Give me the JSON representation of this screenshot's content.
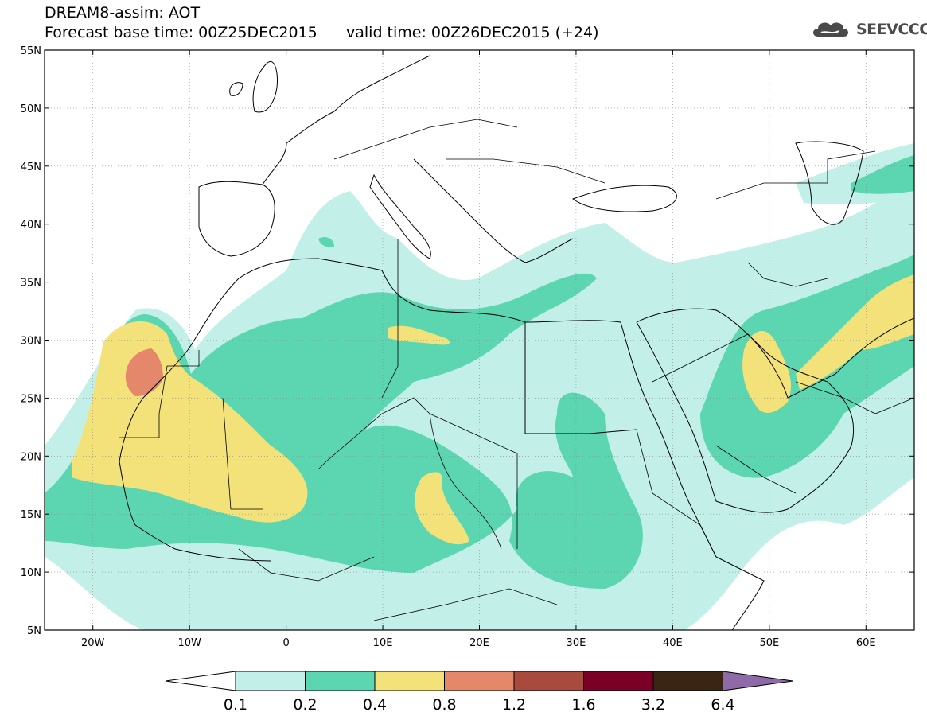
{
  "header": {
    "title_line1": "DREAM8-assim: AOT",
    "base_time_label": "Forecast base time: 00Z25DEC2015",
    "valid_time_label": "valid time: 00Z26DEC2015 (+24)"
  },
  "logo": {
    "icon": "cloud-logo-icon",
    "text": "SEEVCCC"
  },
  "map": {
    "lon_range": [
      -25,
      65
    ],
    "lat_range": [
      5,
      55
    ],
    "lon_ticks": [
      {
        "value": -20,
        "label": "20W"
      },
      {
        "value": -10,
        "label": "10W"
      },
      {
        "value": 0,
        "label": "0"
      },
      {
        "value": 10,
        "label": "10E"
      },
      {
        "value": 20,
        "label": "20E"
      },
      {
        "value": 30,
        "label": "30E"
      },
      {
        "value": 40,
        "label": "40E"
      },
      {
        "value": 50,
        "label": "50E"
      },
      {
        "value": 60,
        "label": "60E"
      }
    ],
    "lat_ticks": [
      {
        "value": 55,
        "label": "55N"
      },
      {
        "value": 50,
        "label": "50N"
      },
      {
        "value": 45,
        "label": "45N"
      },
      {
        "value": 40,
        "label": "40N"
      },
      {
        "value": 35,
        "label": "35N"
      },
      {
        "value": 30,
        "label": "30N"
      },
      {
        "value": 25,
        "label": "25N"
      },
      {
        "value": 20,
        "label": "20N"
      },
      {
        "value": 15,
        "label": "15N"
      },
      {
        "value": 10,
        "label": "10N"
      },
      {
        "value": 5,
        "label": "5N"
      }
    ],
    "grid": true,
    "colors": {
      "aot_0_1_0_2": "#c3efe9",
      "aot_0_2_0_4": "#5bd6b0",
      "aot_0_4_0_8": "#f3e27a",
      "aot_0_8_1_2": "#e5876a"
    }
  },
  "colorbar": {
    "labels": [
      "0.1",
      "0.2",
      "0.4",
      "0.8",
      "1.2",
      "1.6",
      "3.2",
      "6.4"
    ],
    "colors": [
      "#c3efe9",
      "#5bd6b0",
      "#f3e27a",
      "#e5876a",
      "#a94a3e",
      "#7a0026",
      "#3a2414",
      "#8f6aa8"
    ],
    "low_end_color": "#ffffff",
    "high_end_color": "#8f6aa8"
  }
}
